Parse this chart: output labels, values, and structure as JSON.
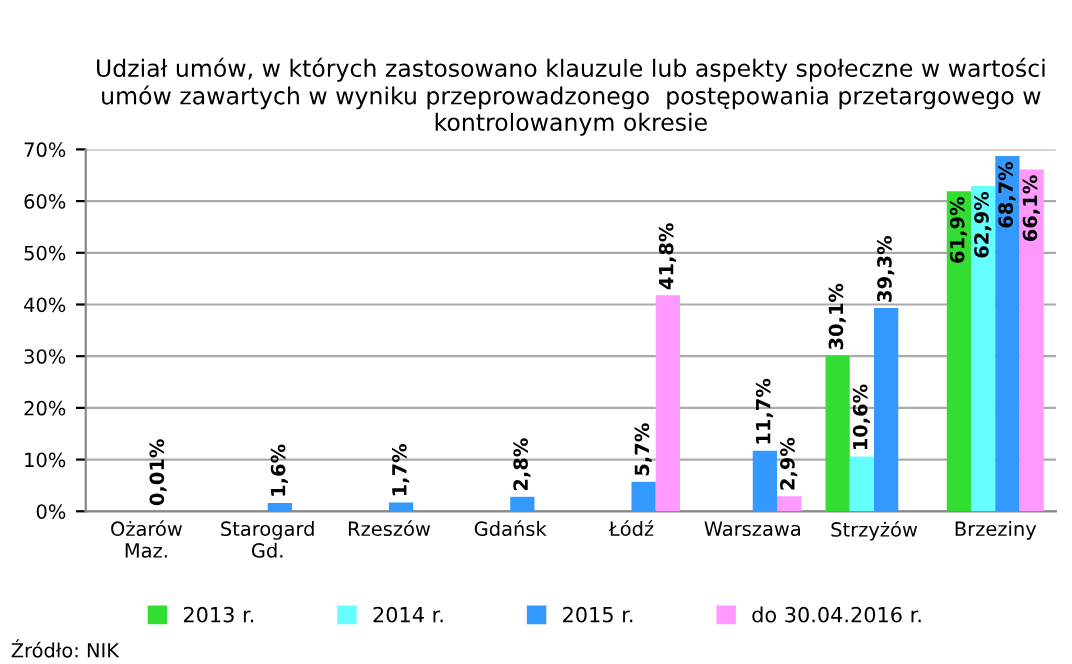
{
  "chart_data": {
    "type": "bar",
    "title": "Udział umów, w których zastosowano klauzule lub aspekty społeczne w wartości umów zawartych w wyniku przeprowadzonego  postępowania przetargowego w kontrolowanym okresie",
    "categories": [
      "Ożarów\nMaz.",
      "Starogard\nGd.",
      "Rzeszów",
      "Gdańsk",
      "Łódź",
      "Warszawa",
      "Strzyżów",
      "Brzeziny"
    ],
    "series": [
      {
        "name": "2013 r.",
        "color": "#33dd33",
        "values": [
          null,
          null,
          null,
          null,
          null,
          null,
          30.1,
          61.9
        ],
        "value_labels": [
          null,
          null,
          null,
          null,
          null,
          null,
          "30,1%",
          "61,9%"
        ]
      },
      {
        "name": "2014 r.",
        "color": "#66ffff",
        "values": [
          null,
          null,
          null,
          null,
          null,
          null,
          10.6,
          62.9
        ],
        "value_labels": [
          null,
          null,
          null,
          null,
          null,
          null,
          "10,6%",
          "62,9%"
        ]
      },
      {
        "name": "2015 r.",
        "color": "#3399ff",
        "values": [
          0.01,
          1.6,
          1.7,
          2.8,
          5.7,
          11.7,
          39.3,
          68.7
        ],
        "value_labels": [
          "0,01%",
          "1,6%",
          "1,7%",
          "2,8%",
          "5,7%",
          "11,7%",
          "39,3%",
          "68,7%"
        ]
      },
      {
        "name": "do 30.04.2016 r.",
        "color": "#ff99ff",
        "values": [
          null,
          null,
          null,
          null,
          41.8,
          2.9,
          null,
          66.1
        ],
        "value_labels": [
          null,
          null,
          null,
          null,
          "41,8%",
          "2,9%",
          null,
          "66,1%"
        ]
      }
    ],
    "ylim": [
      0,
      70
    ],
    "yticks": [
      {
        "value": 0,
        "label": "0%"
      },
      {
        "value": 10,
        "label": "10%"
      },
      {
        "value": 20,
        "label": "20%"
      },
      {
        "value": 30,
        "label": "30%"
      },
      {
        "value": 40,
        "label": "40%"
      },
      {
        "value": 50,
        "label": "50%"
      },
      {
        "value": 60,
        "label": "60%"
      },
      {
        "value": 70,
        "label": "70%"
      }
    ],
    "grid": "y",
    "legend": "bottom",
    "annotations": [
      "Źródło: NIK"
    ]
  }
}
